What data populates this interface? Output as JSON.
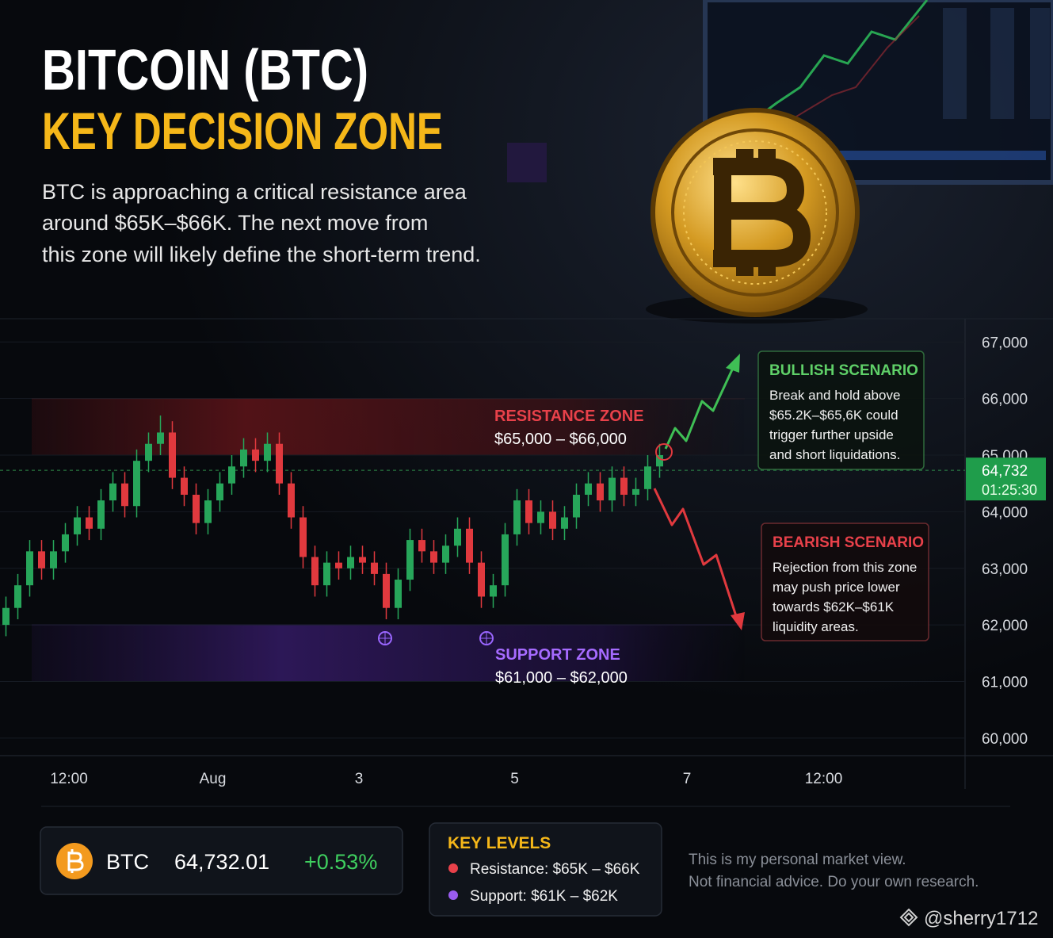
{
  "chart_data": {
    "type": "candlestick",
    "title": "BITCOIN (BTC)",
    "subtitle_heading": "KEY DECISION ZONE",
    "subtitle": [
      "BTC is approaching a critical resistance area",
      "around $65K–$66K. The next move from",
      "this zone will likely define the short-term trend."
    ],
    "up_color": "#27a65a",
    "down_color": "#e0393e",
    "x": [
      0,
      1,
      2,
      3,
      4,
      5,
      6,
      7,
      8,
      9,
      10,
      11,
      12,
      13,
      14,
      15,
      16,
      17,
      18,
      19,
      20,
      21,
      22,
      23,
      24,
      25,
      26,
      27,
      28,
      29,
      30,
      31,
      32,
      33,
      34,
      35,
      36,
      37,
      38,
      39,
      40,
      41,
      42,
      43,
      44,
      45,
      46,
      47,
      48,
      49,
      50,
      51,
      52,
      53,
      54,
      55
    ],
    "open": [
      62000,
      62300,
      62700,
      63300,
      63000,
      63300,
      63600,
      63900,
      63700,
      64200,
      64500,
      64100,
      64900,
      65200,
      65400,
      64600,
      64300,
      63800,
      64200,
      64500,
      64800,
      65100,
      64900,
      65200,
      64500,
      63900,
      63200,
      62700,
      63100,
      63000,
      63200,
      63100,
      62900,
      62300,
      62800,
      63500,
      63300,
      63100,
      63400,
      63700,
      63100,
      62500,
      62700,
      63600,
      64200,
      63800,
      64000,
      63700,
      63900,
      64300,
      64500,
      64200,
      64600,
      64300,
      64400,
      64800
    ],
    "high": [
      62500,
      62900,
      63500,
      63500,
      63500,
      63800,
      64100,
      64100,
      64400,
      64700,
      64700,
      65100,
      65400,
      65700,
      65600,
      64800,
      64500,
      64400,
      64700,
      65000,
      65300,
      65300,
      65400,
      65400,
      64700,
      64100,
      63400,
      63300,
      63300,
      63400,
      63400,
      63300,
      63100,
      63000,
      63700,
      63700,
      63500,
      63600,
      63900,
      63900,
      63300,
      62900,
      63800,
      64400,
      64400,
      64200,
      64200,
      64100,
      64500,
      64700,
      64700,
      64800,
      64800,
      64600,
      65000,
      65200
    ],
    "low": [
      61800,
      62100,
      62500,
      62800,
      62800,
      63100,
      63400,
      63500,
      63500,
      64000,
      63900,
      63900,
      64700,
      65000,
      64400,
      64100,
      63600,
      63600,
      64000,
      64300,
      64600,
      64700,
      64700,
      64300,
      63700,
      63000,
      62500,
      62500,
      62800,
      62800,
      62900,
      62700,
      62100,
      62100,
      62600,
      63100,
      62900,
      62900,
      63200,
      62900,
      62300,
      62300,
      62500,
      63400,
      63600,
      63600,
      63500,
      63500,
      63700,
      64100,
      64000,
      64000,
      64100,
      64100,
      64200,
      64600
    ],
    "close": [
      62300,
      62700,
      63300,
      63000,
      63300,
      63600,
      63900,
      63700,
      64200,
      64500,
      64100,
      64900,
      65200,
      65400,
      64600,
      64300,
      63800,
      64200,
      64500,
      64800,
      65100,
      64900,
      65200,
      64500,
      63900,
      63200,
      62700,
      63100,
      63000,
      63200,
      63100,
      62900,
      62300,
      62800,
      63500,
      63300,
      63100,
      63400,
      63700,
      63100,
      62500,
      62700,
      63600,
      64200,
      63800,
      64000,
      63700,
      63900,
      64300,
      64500,
      64200,
      64600,
      64300,
      64400,
      64800,
      65000
    ],
    "xlim": [
      -0.5,
      80.7
    ],
    "xticks": [
      {
        "value": 5.3,
        "label": "12:00"
      },
      {
        "value": 17.4,
        "label": "Aug"
      },
      {
        "value": 29.7,
        "label": "3"
      },
      {
        "value": 42.8,
        "label": "5"
      },
      {
        "value": 57.3,
        "label": "7"
      },
      {
        "value": 68.8,
        "label": "12:00"
      }
    ],
    "ylim": [
      59690,
      67410
    ],
    "yticks": [
      {
        "value": 60000,
        "label": "60,000"
      },
      {
        "value": 61000,
        "label": "61,000"
      },
      {
        "value": 62000,
        "label": "62,000"
      },
      {
        "value": 63000,
        "label": "63,000"
      },
      {
        "value": 64000,
        "label": "64,000"
      },
      {
        "value": 65000,
        "label": "65,000"
      },
      {
        "value": 66000,
        "label": "66,000"
      },
      {
        "value": 67000,
        "label": "67,000"
      }
    ],
    "grid": true,
    "current_price": {
      "value": 64732,
      "label": "64,732",
      "countdown": "01:25:30"
    },
    "resistance_zone": {
      "label": "RESISTANCE ZONE",
      "range_label": "$65,000 – $66,000",
      "from": 65000,
      "to": 66000
    },
    "support_zone": {
      "label": "SUPPORT ZONE",
      "range_label": "$61,000 – $62,000",
      "from": 61000,
      "to": 62000
    },
    "bullish": {
      "title": "BULLISH SCENARIO",
      "lines": [
        "Break and hold above",
        "$65.2K–$65,6K could",
        "trigger further upside",
        "and short liquidations."
      ]
    },
    "bearish": {
      "title": "BEARISH SCENARIO",
      "lines": [
        "Rejection from this zone",
        "may push price lower",
        "towards $62K–$61K",
        "liquidity areas."
      ]
    },
    "ticker": {
      "symbol": "BTC",
      "price": "64,732.01",
      "change": "+0.53%"
    },
    "key_levels": {
      "title": "KEY LEVELS",
      "items": [
        "Resistance: $65K – $66K",
        "Support: $61K – $62K"
      ]
    },
    "disclaimer": [
      "This is my personal market view.",
      "Not financial advice. Do your own research."
    ],
    "handle": "@sherry1712"
  }
}
